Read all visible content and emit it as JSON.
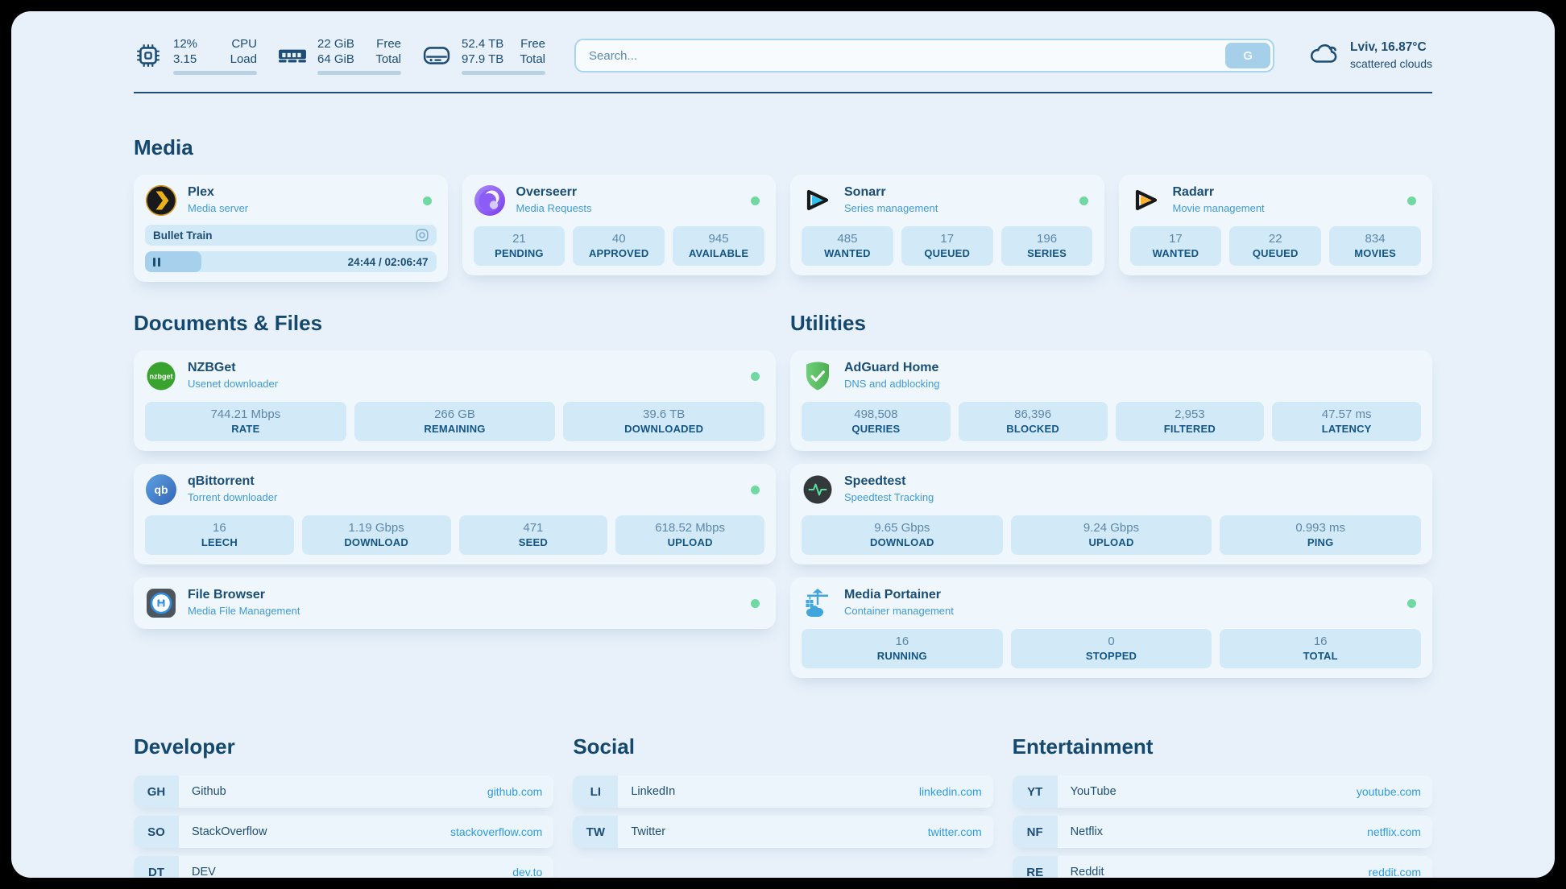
{
  "header": {
    "stats": [
      {
        "icon": "cpu-icon",
        "values": [
          "12%",
          "3.15"
        ],
        "labels": [
          "CPU",
          "Load"
        ],
        "progress_pct": 12
      },
      {
        "icon": "ram-icon",
        "values": [
          "22 GiB",
          "64 GiB"
        ],
        "labels": [
          "Free",
          "Total"
        ],
        "progress_pct": 66
      },
      {
        "icon": "disk-icon",
        "values": [
          "52.4 TB",
          "97.9 TB"
        ],
        "labels": [
          "Free",
          "Total"
        ],
        "progress_pct": 47
      }
    ],
    "search": {
      "placeholder": "Search...",
      "button_label": "G"
    },
    "weather": {
      "icon": "cloud-icon",
      "location_temp": "Lviv, 16.87°C",
      "condition": "scattered clouds"
    }
  },
  "sections": {
    "media": {
      "title": "Media",
      "cards": {
        "plex": {
          "name": "Plex",
          "subtitle": "Media server",
          "online": true,
          "now_playing": {
            "title": "Bullet Train",
            "state": "paused",
            "time": "24:44 / 02:06:47",
            "progress_pct": 19.5
          }
        },
        "overseerr": {
          "name": "Overseerr",
          "subtitle": "Media Requests",
          "online": true,
          "stats": [
            {
              "value": "21",
              "label": "PENDING"
            },
            {
              "value": "40",
              "label": "APPROVED"
            },
            {
              "value": "945",
              "label": "AVAILABLE"
            }
          ]
        },
        "sonarr": {
          "name": "Sonarr",
          "subtitle": "Series management",
          "online": true,
          "stats": [
            {
              "value": "485",
              "label": "WANTED"
            },
            {
              "value": "17",
              "label": "QUEUED"
            },
            {
              "value": "196",
              "label": "SERIES"
            }
          ]
        },
        "radarr": {
          "name": "Radarr",
          "subtitle": "Movie management",
          "online": true,
          "stats": [
            {
              "value": "17",
              "label": "WANTED"
            },
            {
              "value": "22",
              "label": "QUEUED"
            },
            {
              "value": "834",
              "label": "MOVIES"
            }
          ]
        }
      }
    },
    "documents": {
      "title": "Documents & Files",
      "cards": {
        "nzbget": {
          "name": "NZBGet",
          "subtitle": "Usenet downloader",
          "online": true,
          "stats": [
            {
              "value": "744.21 Mbps",
              "label": "RATE"
            },
            {
              "value": "266 GB",
              "label": "REMAINING"
            },
            {
              "value": "39.6 TB",
              "label": "DOWNLOADED"
            }
          ]
        },
        "qbittorrent": {
          "name": "qBittorrent",
          "subtitle": "Torrent downloader",
          "online": true,
          "stats": [
            {
              "value": "16",
              "label": "LEECH"
            },
            {
              "value": "1.19 Gbps",
              "label": "DOWNLOAD"
            },
            {
              "value": "471",
              "label": "SEED"
            },
            {
              "value": "618.52 Mbps",
              "label": "UPLOAD"
            }
          ]
        },
        "filebrowser": {
          "name": "File Browser",
          "subtitle": "Media File Management",
          "online": true
        }
      }
    },
    "utilities": {
      "title": "Utilities",
      "cards": {
        "adguard": {
          "name": "AdGuard Home",
          "subtitle": "DNS and adblocking",
          "online": false,
          "stats": [
            {
              "value": "498,508",
              "label": "QUERIES"
            },
            {
              "value": "86,396",
              "label": "BLOCKED"
            },
            {
              "value": "2,953",
              "label": "FILTERED"
            },
            {
              "value": "47.57 ms",
              "label": "LATENCY"
            }
          ]
        },
        "speedtest": {
          "name": "Speedtest",
          "subtitle": "Speedtest Tracking",
          "online": false,
          "stats": [
            {
              "value": "9.65 Gbps",
              "label": "DOWNLOAD"
            },
            {
              "value": "9.24 Gbps",
              "label": "UPLOAD"
            },
            {
              "value": "0.993 ms",
              "label": "PING"
            }
          ]
        },
        "portainer": {
          "name": "Media Portainer",
          "subtitle": "Container management",
          "online": true,
          "stats": [
            {
              "value": "16",
              "label": "RUNNING"
            },
            {
              "value": "0",
              "label": "STOPPED"
            },
            {
              "value": "16",
              "label": "TOTAL"
            }
          ]
        }
      }
    }
  },
  "links": [
    {
      "title": "Developer",
      "items": [
        {
          "abbr": "GH",
          "name": "Github",
          "url": "github.com"
        },
        {
          "abbr": "SO",
          "name": "StackOverflow",
          "url": "stackoverflow.com"
        },
        {
          "abbr": "DT",
          "name": "DEV",
          "url": "dev.to"
        }
      ]
    },
    {
      "title": "Social",
      "items": [
        {
          "abbr": "LI",
          "name": "LinkedIn",
          "url": "linkedin.com"
        },
        {
          "abbr": "TW",
          "name": "Twitter",
          "url": "twitter.com"
        }
      ]
    },
    {
      "title": "Entertainment",
      "items": [
        {
          "abbr": "YT",
          "name": "YouTube",
          "url": "youtube.com"
        },
        {
          "abbr": "NF",
          "name": "Netflix",
          "url": "netflix.com"
        },
        {
          "abbr": "RE",
          "name": "Reddit",
          "url": "reddit.com"
        }
      ]
    }
  ],
  "colors": {
    "page_bg": "#e8f1fa",
    "card_bg": "#eff6fc",
    "chip_bg": "#d2e9f7",
    "navy": "#1d4d74",
    "subtitle_blue": "#3f9bd9",
    "online_green": "#70d9a2",
    "link_blue": "#2d9ce2",
    "plex_amber": "#e5a00d"
  }
}
